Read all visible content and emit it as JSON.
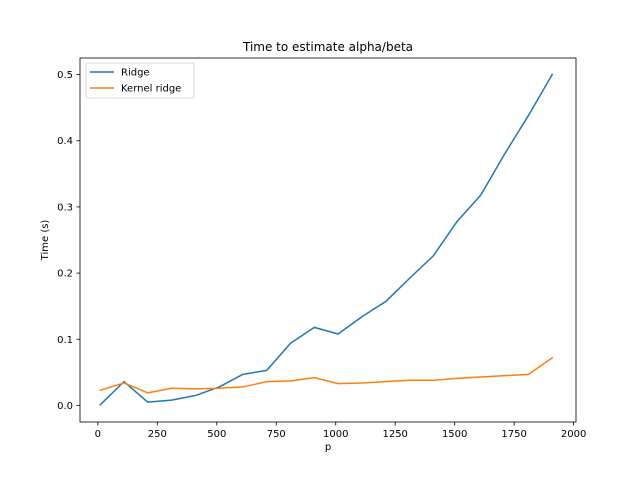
{
  "chart_data": {
    "type": "line",
    "title": "Time to estimate alpha/beta",
    "xlabel": "p",
    "ylabel": "Time (s)",
    "xlim": [
      -75,
      2010
    ],
    "ylim": [
      -0.025,
      0.525
    ],
    "xticks": [
      0,
      250,
      500,
      750,
      1000,
      1250,
      1500,
      1750,
      2000
    ],
    "xtick_labels": [
      "0",
      "250",
      "500",
      "750",
      "1000",
      "1250",
      "1500",
      "1750",
      "2000"
    ],
    "yticks": [
      0.0,
      0.1,
      0.2,
      0.3,
      0.4,
      0.5
    ],
    "ytick_labels": [
      "0.0",
      "0.1",
      "0.2",
      "0.3",
      "0.4",
      "0.5"
    ],
    "grid": false,
    "legend_position": "upper-left",
    "x": [
      10,
      110,
      210,
      310,
      410,
      510,
      610,
      710,
      810,
      910,
      1010,
      1110,
      1210,
      1310,
      1410,
      1510,
      1610,
      1710,
      1810,
      1910
    ],
    "series": [
      {
        "name": "Ridge",
        "color": "#1f77b4",
        "values": [
          0.001,
          0.036,
          0.005,
          0.008,
          0.015,
          0.028,
          0.047,
          0.053,
          0.094,
          0.118,
          0.108,
          0.134,
          0.157,
          0.192,
          0.226,
          0.278,
          0.318,
          0.38,
          0.438,
          0.5
        ]
      },
      {
        "name": "Kernel ridge",
        "color": "#ff7f0e",
        "values": [
          0.023,
          0.034,
          0.019,
          0.026,
          0.025,
          0.026,
          0.028,
          0.036,
          0.037,
          0.042,
          0.033,
          0.034,
          0.036,
          0.038,
          0.038,
          0.041,
          0.043,
          0.045,
          0.047,
          0.072
        ]
      }
    ]
  }
}
